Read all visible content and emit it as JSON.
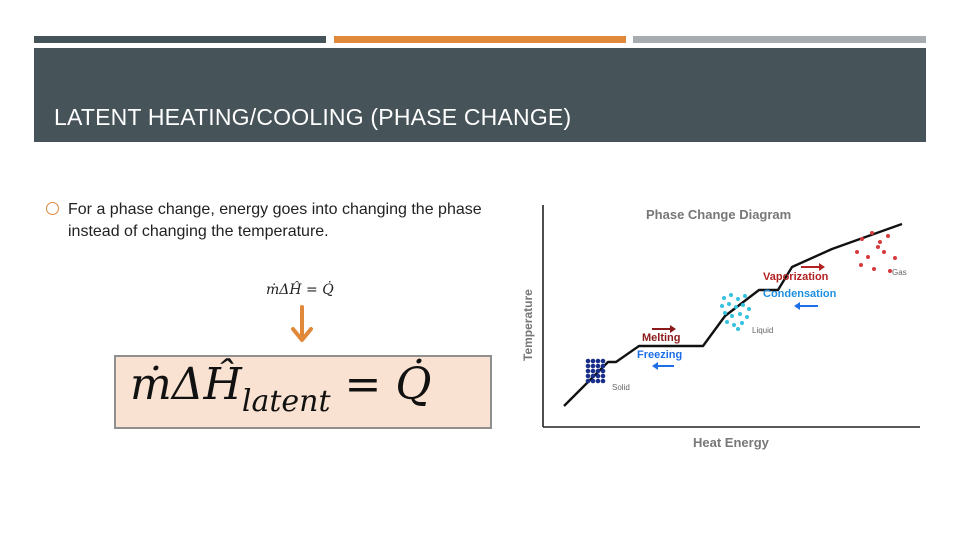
{
  "slide": {
    "title": "LATENT HEATING/COOLING (PHASE CHANGE)",
    "accent_colors": {
      "dark": "#465359",
      "orange": "#e0893a",
      "gray": "#a6acb0"
    }
  },
  "bullet": {
    "icon": "circle-bullet-icon",
    "text": "For a phase change, energy goes into changing the phase instead of changing the temperature."
  },
  "equations": {
    "small": "ṁΔĤ = Q̇",
    "big_lhs": "ṁΔĤ",
    "big_sub": "latent",
    "big_rhs": " = Q̇",
    "arrow_icon": "down-arrow-icon"
  },
  "diagram": {
    "title": "Phase Change Diagram",
    "ylabel": "Temperature",
    "xlabel": "Heat Energy",
    "labels": {
      "vaporization": "Vaporization",
      "condensation": "Condensation",
      "melting": "Melting",
      "freezing": "Freezing",
      "gas": "Gas",
      "liquid": "Liquid",
      "solid": "Solid"
    },
    "colors": {
      "heating": "#b22222",
      "cooling": "#1e6ee8",
      "solid": "#1a2f8a",
      "liquid": "#35c2e0",
      "gas": "#d63a3a"
    }
  }
}
